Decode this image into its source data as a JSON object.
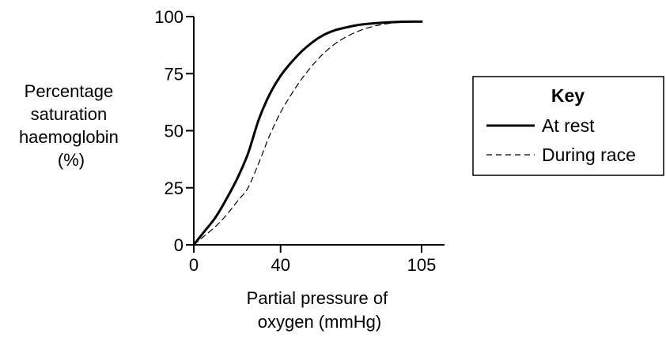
{
  "chart_data": {
    "type": "line",
    "xlabel": [
      "Partial pressure of",
      "oxygen (mmHg)"
    ],
    "ylabel": [
      "Percentage",
      "saturation",
      "haemoglobin",
      "(%)"
    ],
    "xticks": [
      0,
      40,
      105
    ],
    "yticks": [
      0,
      25,
      50,
      75,
      100
    ],
    "xlim": [
      0,
      105
    ],
    "ylim": [
      0,
      100
    ],
    "grid": false,
    "legend": {
      "title": "Key",
      "placement": "right"
    },
    "series": [
      {
        "name": "At rest",
        "style": "solid",
        "x": [
          0,
          5,
          10,
          15,
          20,
          25,
          30,
          35,
          40,
          45,
          50,
          55,
          60,
          65,
          70,
          75,
          80,
          85,
          90,
          95,
          100,
          105
        ],
        "y": [
          0,
          6,
          12,
          20,
          29,
          40,
          55,
          66,
          74,
          80,
          85,
          89,
          92,
          94,
          95.2,
          96.2,
          96.8,
          97.2,
          97.5,
          97.7,
          97.8,
          97.8
        ]
      },
      {
        "name": "During race",
        "style": "dashed",
        "x": [
          0,
          5,
          10,
          15,
          20,
          25,
          30,
          35,
          40,
          45,
          50,
          55,
          60,
          65,
          70,
          75,
          80,
          85,
          90,
          95,
          100,
          105
        ],
        "y": [
          0,
          4,
          8,
          13,
          19,
          25,
          36,
          48,
          58,
          66,
          73,
          79,
          84,
          88,
          91,
          93.3,
          95,
          96.2,
          97,
          97.5,
          97.7,
          97.8
        ]
      }
    ]
  }
}
